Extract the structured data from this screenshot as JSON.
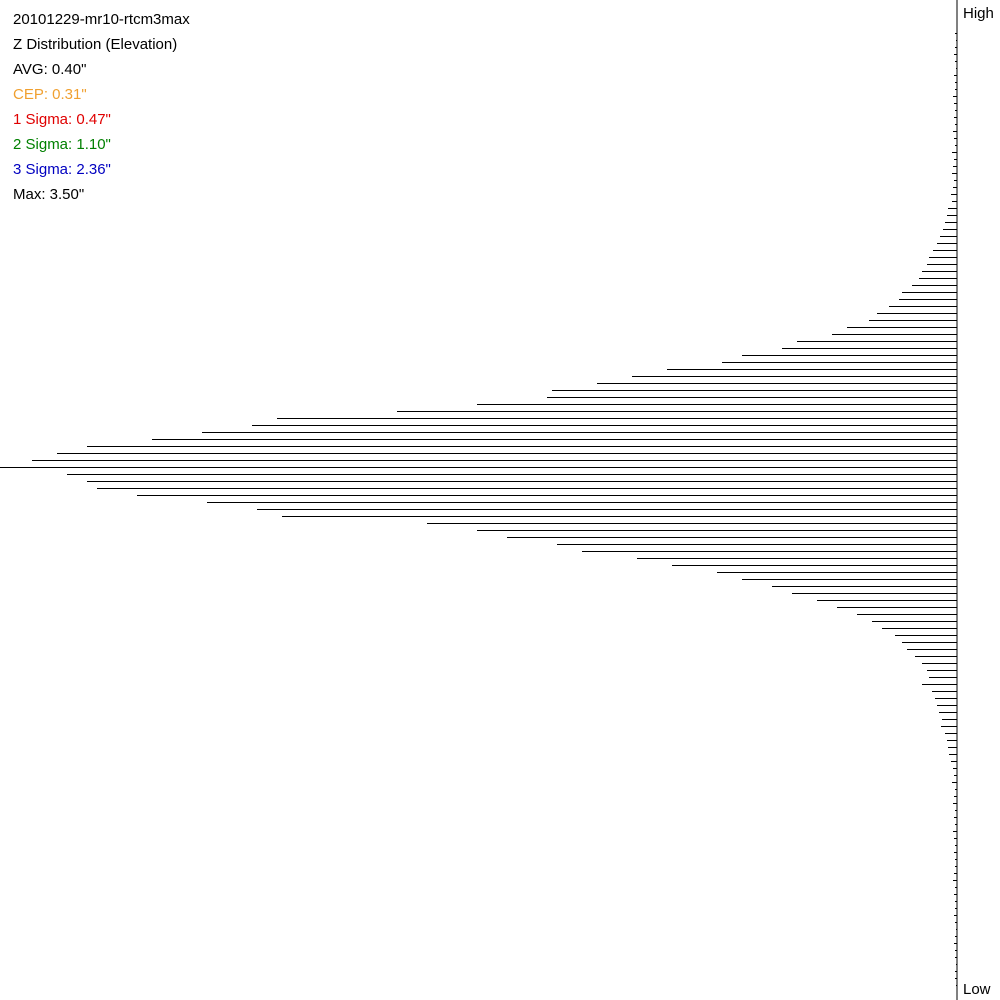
{
  "chart_data": {
    "type": "hbar-lines",
    "annotations": [
      {
        "text": "20101229-mr10-rtcm3max",
        "color": "#000000"
      },
      {
        "text": "Z Distribution (Elevation)",
        "color": "#000000"
      },
      {
        "text": "AVG: 0.40\"",
        "color": "#000000"
      },
      {
        "text": "CEP: 0.31\"",
        "color": "#f0a030"
      },
      {
        "text": "1 Sigma: 0.47\"",
        "color": "#e00000"
      },
      {
        "text": "2 Sigma: 1.10\"",
        "color": "#008000"
      },
      {
        "text": "3 Sigma: 2.36\"",
        "color": "#0000c0"
      },
      {
        "text": "Max: 3.50\"",
        "color": "#000000"
      }
    ],
    "axis_top_label": "High",
    "axis_bottom_label": "Low",
    "color": "#000000",
    "xlim": [
      0,
      957
    ],
    "values": [
      2,
      1,
      2,
      3,
      2,
      1,
      3,
      2,
      2,
      4,
      3,
      2,
      3,
      2,
      4,
      3,
      2,
      5,
      3,
      4,
      5,
      3,
      4,
      6,
      5,
      9,
      10,
      12,
      14,
      17,
      20,
      24,
      28,
      30,
      35,
      38,
      45,
      55,
      58,
      68,
      80,
      88,
      110,
      125,
      160,
      175,
      215,
      235,
      290,
      325,
      360,
      405,
      410,
      480,
      560,
      680,
      705,
      755,
      805,
      870,
      900,
      925,
      957,
      890,
      870,
      860,
      820,
      750,
      700,
      675,
      530,
      480,
      450,
      400,
      375,
      320,
      285,
      240,
      215,
      185,
      165,
      140,
      120,
      100,
      85,
      75,
      62,
      55,
      50,
      42,
      35,
      30,
      28,
      35,
      25,
      22,
      20,
      18,
      15,
      16,
      12,
      10,
      9,
      8,
      6,
      4,
      3,
      5,
      2,
      3,
      4,
      2,
      3,
      2,
      4,
      3,
      2,
      3,
      2,
      2,
      3,
      4,
      2,
      3,
      2,
      2,
      3,
      2,
      1,
      2,
      3,
      2,
      2,
      1,
      2,
      2,
      1
    ]
  }
}
